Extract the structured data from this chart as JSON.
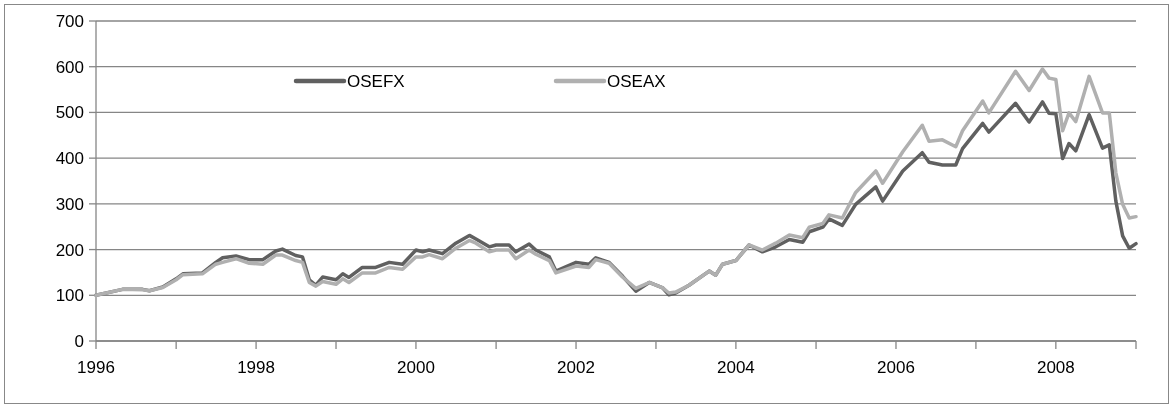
{
  "chart_data": {
    "type": "line",
    "legend": "top",
    "grid": "y",
    "line_style": "solid",
    "marker": "none",
    "x": [
      "1996-01",
      "1996-05",
      "1996-08",
      "1996-09",
      "1996-11",
      "1997-01",
      "1997-02",
      "1997-05",
      "1997-07",
      "1997-08",
      "1997-10",
      "1997-12",
      "1998-02",
      "1998-04",
      "1998-05",
      "1998-07",
      "1998-08",
      "1998-09",
      "1998-10",
      "1998-11",
      "1999-01",
      "1999-02",
      "1999-03",
      "1999-05",
      "1999-07",
      "1999-09",
      "1999-11",
      "2000-01",
      "2000-02",
      "2000-03",
      "2000-05",
      "2000-07",
      "2000-09",
      "2000-10",
      "2000-12",
      "2001-01",
      "2001-03",
      "2001-04",
      "2001-06",
      "2001-07",
      "2001-09",
      "2001-10",
      "2002-01",
      "2002-03",
      "2002-04",
      "2002-06",
      "2002-08",
      "2002-10",
      "2002-12",
      "2003-02",
      "2003-03",
      "2003-04",
      "2003-06",
      "2003-09",
      "2003-10",
      "2003-11",
      "2004-01",
      "2004-03",
      "2004-05",
      "2004-07",
      "2004-09",
      "2004-11",
      "2004-12",
      "2005-02",
      "2005-03",
      "2005-05",
      "2005-07",
      "2005-10",
      "2005-11",
      "2006-02",
      "2006-05",
      "2006-06",
      "2006-08",
      "2006-10",
      "2006-11",
      "2007-02",
      "2007-03",
      "2007-07",
      "2007-09",
      "2007-11",
      "2007-12",
      "2008-01",
      "2008-02",
      "2008-03",
      "2008-04",
      "2008-06",
      "2008-08",
      "2008-09",
      "2008-10",
      "2008-11",
      "2008-12",
      "2009-01"
    ],
    "series": [
      {
        "name": "OSEFX",
        "color": "#606060",
        "values": [
          100,
          113,
          113,
          110,
          118,
          136,
          147,
          149,
          172,
          182,
          186,
          178,
          178,
          197,
          201,
          187,
          184,
          134,
          122,
          140,
          134,
          147,
          139,
          161,
          161,
          172,
          168,
          199,
          195,
          199,
          191,
          214,
          231,
          223,
          206,
          210,
          210,
          195,
          212,
          199,
          184,
          153,
          172,
          168,
          182,
          172,
          142,
          109,
          128,
          116,
          101,
          105,
          122,
          153,
          144,
          168,
          176,
          210,
          195,
          206,
          222,
          216,
          239,
          249,
          267,
          253,
          299,
          337,
          306,
          372,
          412,
          391,
          385,
          385,
          421,
          476,
          457,
          520,
          479,
          523,
          498,
          497,
          399,
          432,
          416,
          495,
          422,
          429,
          306,
          230,
          203,
          213
        ]
      },
      {
        "name": "OSEAX",
        "color": "#b0b0b0",
        "values": [
          100,
          113,
          112,
          110,
          117,
          134,
          145,
          147,
          168,
          172,
          180,
          170,
          168,
          188,
          188,
          176,
          172,
          128,
          120,
          130,
          124,
          136,
          128,
          149,
          149,
          161,
          157,
          184,
          184,
          189,
          180,
          203,
          220,
          214,
          195,
          199,
          199,
          180,
          199,
          190,
          176,
          149,
          164,
          161,
          178,
          170,
          140,
          115,
          128,
          116,
          105,
          107,
          122,
          153,
          144,
          168,
          176,
          210,
          199,
          214,
          232,
          226,
          249,
          257,
          276,
          269,
          325,
          372,
          345,
          414,
          472,
          437,
          440,
          425,
          460,
          525,
          499,
          590,
          548,
          595,
          575,
          572,
          460,
          499,
          480,
          579,
          499,
          499,
          368,
          299,
          269,
          272
        ]
      }
    ],
    "ylim": [
      0,
      700
    ],
    "yticks": [
      0,
      100,
      200,
      300,
      400,
      500,
      600,
      700
    ],
    "xlim": [
      "1996-01",
      "2009-01"
    ],
    "xticks": [
      {
        "value": "1996-01",
        "label": "1996"
      },
      {
        "value": "1997-01",
        "label": null
      },
      {
        "value": "1998-01",
        "label": "1998"
      },
      {
        "value": "1999-01",
        "label": null
      },
      {
        "value": "2000-01",
        "label": "2000"
      },
      {
        "value": "2001-01",
        "label": null
      },
      {
        "value": "2002-01",
        "label": "2002"
      },
      {
        "value": "2003-01",
        "label": null
      },
      {
        "value": "2004-01",
        "label": "2004"
      },
      {
        "value": "2005-01",
        "label": null
      },
      {
        "value": "2006-01",
        "label": "2006"
      },
      {
        "value": "2007-01",
        "label": null
      },
      {
        "value": "2008-01",
        "label": "2008"
      },
      {
        "value": "2009-01",
        "label": null
      }
    ]
  }
}
